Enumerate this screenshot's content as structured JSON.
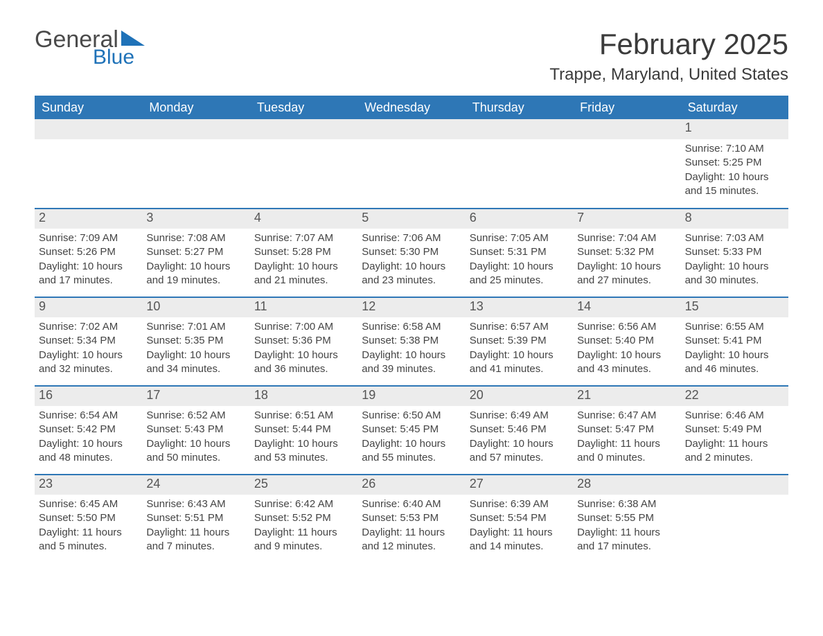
{
  "logo": {
    "text1": "General",
    "text2": "Blue",
    "shape_color": "#1f72b8"
  },
  "title": "February 2025",
  "location": "Trappe, Maryland, United States",
  "colors": {
    "header_bg": "#2e77b6",
    "header_text": "#ffffff",
    "daynum_bg": "#ececec",
    "border": "#2e77b6",
    "body_bg": "#ffffff",
    "text": "#444444"
  },
  "weekdays": [
    "Sunday",
    "Monday",
    "Tuesday",
    "Wednesday",
    "Thursday",
    "Friday",
    "Saturday"
  ],
  "weeks": [
    [
      {
        "n": "",
        "lines": []
      },
      {
        "n": "",
        "lines": []
      },
      {
        "n": "",
        "lines": []
      },
      {
        "n": "",
        "lines": []
      },
      {
        "n": "",
        "lines": []
      },
      {
        "n": "",
        "lines": []
      },
      {
        "n": "1",
        "lines": [
          "Sunrise: 7:10 AM",
          "Sunset: 5:25 PM",
          "Daylight: 10 hours and 15 minutes."
        ]
      }
    ],
    [
      {
        "n": "2",
        "lines": [
          "Sunrise: 7:09 AM",
          "Sunset: 5:26 PM",
          "Daylight: 10 hours and 17 minutes."
        ]
      },
      {
        "n": "3",
        "lines": [
          "Sunrise: 7:08 AM",
          "Sunset: 5:27 PM",
          "Daylight: 10 hours and 19 minutes."
        ]
      },
      {
        "n": "4",
        "lines": [
          "Sunrise: 7:07 AM",
          "Sunset: 5:28 PM",
          "Daylight: 10 hours and 21 minutes."
        ]
      },
      {
        "n": "5",
        "lines": [
          "Sunrise: 7:06 AM",
          "Sunset: 5:30 PM",
          "Daylight: 10 hours and 23 minutes."
        ]
      },
      {
        "n": "6",
        "lines": [
          "Sunrise: 7:05 AM",
          "Sunset: 5:31 PM",
          "Daylight: 10 hours and 25 minutes."
        ]
      },
      {
        "n": "7",
        "lines": [
          "Sunrise: 7:04 AM",
          "Sunset: 5:32 PM",
          "Daylight: 10 hours and 27 minutes."
        ]
      },
      {
        "n": "8",
        "lines": [
          "Sunrise: 7:03 AM",
          "Sunset: 5:33 PM",
          "Daylight: 10 hours and 30 minutes."
        ]
      }
    ],
    [
      {
        "n": "9",
        "lines": [
          "Sunrise: 7:02 AM",
          "Sunset: 5:34 PM",
          "Daylight: 10 hours and 32 minutes."
        ]
      },
      {
        "n": "10",
        "lines": [
          "Sunrise: 7:01 AM",
          "Sunset: 5:35 PM",
          "Daylight: 10 hours and 34 minutes."
        ]
      },
      {
        "n": "11",
        "lines": [
          "Sunrise: 7:00 AM",
          "Sunset: 5:36 PM",
          "Daylight: 10 hours and 36 minutes."
        ]
      },
      {
        "n": "12",
        "lines": [
          "Sunrise: 6:58 AM",
          "Sunset: 5:38 PM",
          "Daylight: 10 hours and 39 minutes."
        ]
      },
      {
        "n": "13",
        "lines": [
          "Sunrise: 6:57 AM",
          "Sunset: 5:39 PM",
          "Daylight: 10 hours and 41 minutes."
        ]
      },
      {
        "n": "14",
        "lines": [
          "Sunrise: 6:56 AM",
          "Sunset: 5:40 PM",
          "Daylight: 10 hours and 43 minutes."
        ]
      },
      {
        "n": "15",
        "lines": [
          "Sunrise: 6:55 AM",
          "Sunset: 5:41 PM",
          "Daylight: 10 hours and 46 minutes."
        ]
      }
    ],
    [
      {
        "n": "16",
        "lines": [
          "Sunrise: 6:54 AM",
          "Sunset: 5:42 PM",
          "Daylight: 10 hours and 48 minutes."
        ]
      },
      {
        "n": "17",
        "lines": [
          "Sunrise: 6:52 AM",
          "Sunset: 5:43 PM",
          "Daylight: 10 hours and 50 minutes."
        ]
      },
      {
        "n": "18",
        "lines": [
          "Sunrise: 6:51 AM",
          "Sunset: 5:44 PM",
          "Daylight: 10 hours and 53 minutes."
        ]
      },
      {
        "n": "19",
        "lines": [
          "Sunrise: 6:50 AM",
          "Sunset: 5:45 PM",
          "Daylight: 10 hours and 55 minutes."
        ]
      },
      {
        "n": "20",
        "lines": [
          "Sunrise: 6:49 AM",
          "Sunset: 5:46 PM",
          "Daylight: 10 hours and 57 minutes."
        ]
      },
      {
        "n": "21",
        "lines": [
          "Sunrise: 6:47 AM",
          "Sunset: 5:47 PM",
          "Daylight: 11 hours and 0 minutes."
        ]
      },
      {
        "n": "22",
        "lines": [
          "Sunrise: 6:46 AM",
          "Sunset: 5:49 PM",
          "Daylight: 11 hours and 2 minutes."
        ]
      }
    ],
    [
      {
        "n": "23",
        "lines": [
          "Sunrise: 6:45 AM",
          "Sunset: 5:50 PM",
          "Daylight: 11 hours and 5 minutes."
        ]
      },
      {
        "n": "24",
        "lines": [
          "Sunrise: 6:43 AM",
          "Sunset: 5:51 PM",
          "Daylight: 11 hours and 7 minutes."
        ]
      },
      {
        "n": "25",
        "lines": [
          "Sunrise: 6:42 AM",
          "Sunset: 5:52 PM",
          "Daylight: 11 hours and 9 minutes."
        ]
      },
      {
        "n": "26",
        "lines": [
          "Sunrise: 6:40 AM",
          "Sunset: 5:53 PM",
          "Daylight: 11 hours and 12 minutes."
        ]
      },
      {
        "n": "27",
        "lines": [
          "Sunrise: 6:39 AM",
          "Sunset: 5:54 PM",
          "Daylight: 11 hours and 14 minutes."
        ]
      },
      {
        "n": "28",
        "lines": [
          "Sunrise: 6:38 AM",
          "Sunset: 5:55 PM",
          "Daylight: 11 hours and 17 minutes."
        ]
      },
      {
        "n": "",
        "lines": []
      }
    ]
  ]
}
